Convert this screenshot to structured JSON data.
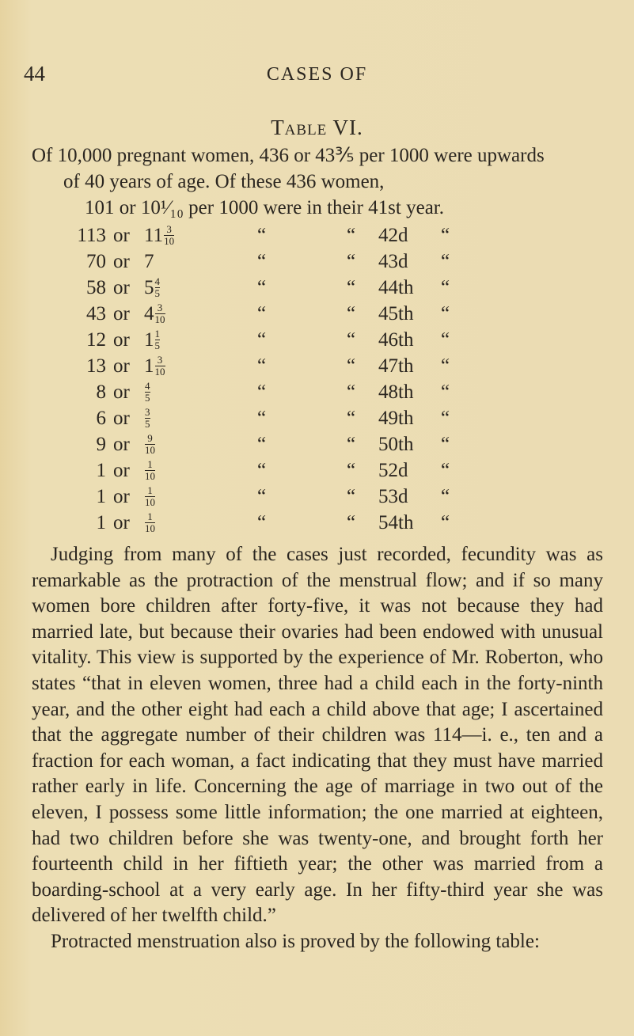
{
  "header": {
    "page_number": "44",
    "running_title": "CASES OF"
  },
  "table_title": "Table VI.",
  "intro": {
    "line1": "Of 10,000 pregnant women, 436 or 43⅗ per 1000 were upwards",
    "line2": "of 40 years of age.  Of these 436 women,",
    "line3": "101 or 10¹⁄₁₀ per 1000 were in their 41st year."
  },
  "table": {
    "rows": [
      {
        "count": "113",
        "or": "or",
        "whole": "11",
        "num": "3",
        "den": "10",
        "ditto1": "“",
        "ditto2": "“",
        "year": "42d",
        "ditto3": "“"
      },
      {
        "count": "70",
        "or": "or",
        "whole": "7",
        "num": "",
        "den": "",
        "ditto1": "“",
        "ditto2": "“",
        "year": "43d",
        "ditto3": "“"
      },
      {
        "count": "58",
        "or": "or",
        "whole": "5",
        "num": "4",
        "den": "5",
        "ditto1": "“",
        "ditto2": "“",
        "year": "44th",
        "ditto3": "“"
      },
      {
        "count": "43",
        "or": "or",
        "whole": "4",
        "num": "3",
        "den": "10",
        "ditto1": "“",
        "ditto2": "“",
        "year": "45th",
        "ditto3": "“"
      },
      {
        "count": "12",
        "or": "or",
        "whole": "1",
        "num": "1",
        "den": "5",
        "ditto1": "“",
        "ditto2": "“",
        "year": "46th",
        "ditto3": "“"
      },
      {
        "count": "13",
        "or": "or",
        "whole": "1",
        "num": "3",
        "den": "10",
        "ditto1": "“",
        "ditto2": "“",
        "year": "47th",
        "ditto3": "“"
      },
      {
        "count": "8",
        "or": "or",
        "whole": "",
        "num": "4",
        "den": "5",
        "ditto1": "“",
        "ditto2": "“",
        "year": "48th",
        "ditto3": "“"
      },
      {
        "count": "6",
        "or": "or",
        "whole": "",
        "num": "3",
        "den": "5",
        "ditto1": "“",
        "ditto2": "“",
        "year": "49th",
        "ditto3": "“"
      },
      {
        "count": "9",
        "or": "or",
        "whole": "",
        "num": "9",
        "den": "10",
        "ditto1": "“",
        "ditto2": "“",
        "year": "50th",
        "ditto3": "“"
      },
      {
        "count": "1",
        "or": "or",
        "whole": "",
        "num": "1",
        "den": "10",
        "ditto1": "“",
        "ditto2": "“",
        "year": "52d",
        "ditto3": "“"
      },
      {
        "count": "1",
        "or": "or",
        "whole": "",
        "num": "1",
        "den": "10",
        "ditto1": "“",
        "ditto2": "“",
        "year": "53d",
        "ditto3": "“"
      },
      {
        "count": "1",
        "or": "or",
        "whole": "",
        "num": "1",
        "den": "10",
        "ditto1": "“",
        "ditto2": "“",
        "year": "54th",
        "ditto3": "“"
      }
    ]
  },
  "body": {
    "paragraph1": "Judging from many of the cases just recorded, fecundity was as remarkable as the protraction of the menstrual flow; and if so many women bore children after forty-five, it was not because they had married late, but because their ovaries had been endowed with unusual vitality. This view is supported by the experience of Mr. Roberton, who states “that in eleven women, three had a child each in the forty-ninth year, and the other eight had each a child above that age; I ascertained that the aggregate number of their children was 114—i. e., ten and a fraction for each woman, a fact indicating that they must have married rather early in life. Concerning the age of marriage in two out of the eleven, I possess some little information; the one married at eighteen, had two children before she was twenty-one, and brought forth her fourteenth child in her fiftieth year; the other was married from a boarding-school at a very early age. In her fifty-third year she was delivered of her twelfth child.”",
    "paragraph2": "Protracted menstruation also is proved by the following table:"
  }
}
